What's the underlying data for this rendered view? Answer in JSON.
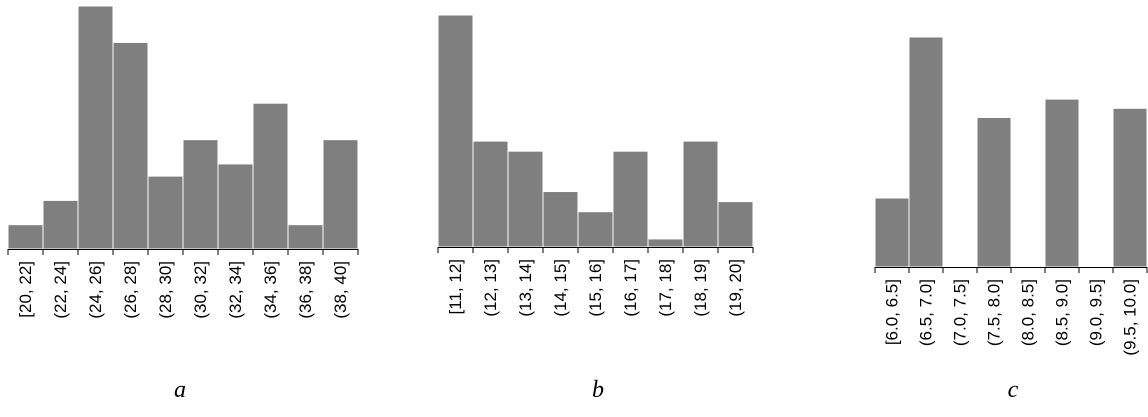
{
  "chart_data": [
    {
      "type": "bar",
      "panel_label": "a",
      "categories": [
        "[20, 22]",
        "(22, 24]",
        "(24, 26]",
        "(26, 28]",
        "(28, 30]",
        "(30, 32]",
        "(32, 34]",
        "(34, 36]",
        "(36, 38]",
        "(38, 40]"
      ],
      "values": [
        2,
        4,
        20,
        17,
        6,
        9,
        7,
        12,
        2,
        9
      ],
      "ylim": [
        0,
        20
      ],
      "bar_color": "#7f7f7f",
      "grid": false
    },
    {
      "type": "bar",
      "panel_label": "b",
      "categories": [
        "[11, 12]",
        "(12, 13]",
        "(13, 14]",
        "(14, 15]",
        "(15, 16]",
        "(16, 17]",
        "(17, 18]",
        "(18, 19]",
        "(19, 20]"
      ],
      "values": [
        23,
        10.5,
        9.5,
        5.5,
        3.5,
        9.5,
        0.8,
        10.5,
        4.5
      ],
      "ylim": [
        0,
        23
      ],
      "bar_color": "#7f7f7f",
      "grid": false
    },
    {
      "type": "bar",
      "panel_label": "c",
      "categories": [
        "[6.0, 6.5]",
        "(6.5, 7.0]",
        "(7.0, 7.5]",
        "(7.5, 8.0]",
        "(8.0, 8.5]",
        "(8.5, 9.0]",
        "(9.0, 9.5]",
        "(9.5, 10.0]"
      ],
      "values": [
        3,
        10,
        0,
        6.5,
        0,
        7.3,
        0,
        6.9
      ],
      "ylim": [
        0,
        10
      ],
      "bar_color": "#7f7f7f",
      "grid": false
    }
  ]
}
